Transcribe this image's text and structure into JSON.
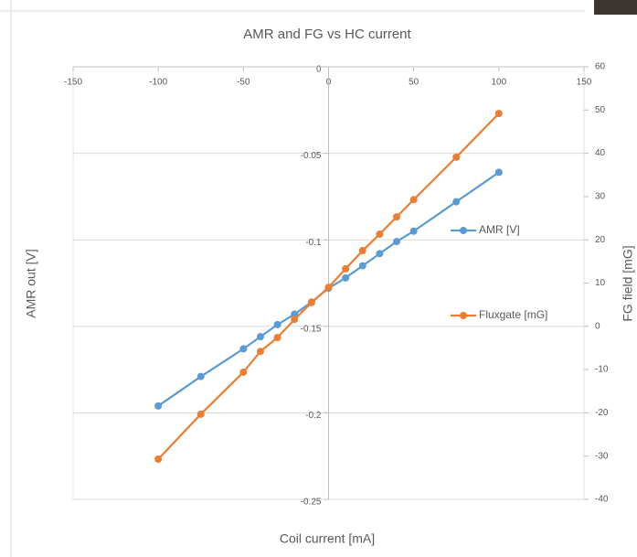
{
  "chart_data": {
    "type": "line",
    "title": "AMR and FG vs HC current",
    "x_label": "Coil current [mA]",
    "y_label": "AMR out  [V]",
    "y2_label": "FG field [mG]",
    "x": [
      -100,
      -75,
      -50,
      -40,
      -30,
      -20,
      -10,
      0,
      10,
      20,
      30,
      40,
      50,
      75,
      100
    ],
    "series": [
      {
        "name": "AMR [V]",
        "color": "#5b9bd5",
        "axis": "y",
        "values": [
          -0.196,
          -0.179,
          -0.163,
          -0.156,
          -0.149,
          -0.143,
          -0.136,
          -0.128,
          -0.122,
          -0.115,
          -0.108,
          -0.101,
          -0.095,
          -0.078,
          -0.061
        ]
      },
      {
        "name": "Fluxgate  [mG]",
        "color": "#ed7d31",
        "axis": "y2",
        "values": [
          -30.7,
          -20.3,
          -10.6,
          -5.8,
          -2.6,
          1.6,
          5.5,
          9.0,
          13.3,
          17.5,
          21.3,
          25.3,
          29.3,
          39.1,
          49.2
        ]
      }
    ],
    "xlim": [
      -150,
      150
    ],
    "xticks": [
      -150,
      -100,
      -50,
      0,
      50,
      100,
      150
    ],
    "ylim": [
      -0.25,
      0
    ],
    "yticks": [
      0,
      -0.05,
      -0.1,
      -0.15,
      -0.2,
      -0.25
    ],
    "y2lim": [
      -40,
      60
    ],
    "y2ticks": [
      -40,
      -30,
      -20,
      -10,
      0,
      10,
      20,
      30,
      40,
      50,
      60
    ],
    "grid": true,
    "legend": "right"
  }
}
